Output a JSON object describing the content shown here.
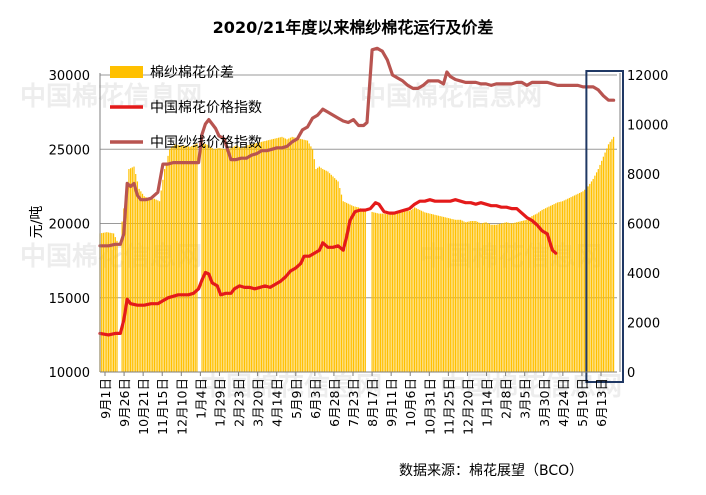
{
  "chart_data": {
    "type": "bar+line",
    "title": "2020/21年度以来棉纱棉花运行及价差",
    "source": "数据来源：棉花展望（BCO）",
    "watermark": "中国棉花信息网",
    "left_axis": {
      "label": "元/吨",
      "ylim": [
        10000,
        30000
      ],
      "ticks": [
        10000,
        15000,
        20000,
        25000,
        30000
      ]
    },
    "right_axis": {
      "ylim": [
        0,
        12000
      ],
      "ticks": [
        0,
        2000,
        4000,
        6000,
        8000,
        10000,
        12000
      ]
    },
    "grid": true,
    "legend_position": "top-left",
    "x_ticks": [
      "9月1日",
      "9月26日",
      "10月21日",
      "11月15日",
      "12月10日",
      "1月4日",
      "1月29日",
      "2月23日",
      "3月20日",
      "4月14日",
      "5月9日",
      "6月3日",
      "6月28日",
      "7月23日",
      "8月17日",
      "9月11日",
      "10月6日",
      "10月31日",
      "11月25日",
      "12月20日",
      "1月14日",
      "2月8日",
      "3月5日",
      "3月30日",
      "4月24日",
      "5月19日",
      "6月13日"
    ],
    "x_axis_days": 304,
    "series": [
      {
        "name": "棉纱棉花价差",
        "kind": "bar",
        "axis": "right",
        "color": "#FFC000",
        "points": [
          [
            0,
            5600
          ],
          [
            4,
            5650
          ],
          [
            8,
            5600
          ],
          [
            10,
            5300
          ],
          [
            12,
            5550
          ],
          [
            17,
            8200
          ],
          [
            20,
            8300
          ],
          [
            23,
            7400
          ],
          [
            26,
            7100
          ],
          [
            29,
            7000
          ],
          [
            32,
            7000
          ],
          [
            35,
            6900
          ],
          [
            38,
            8200
          ],
          [
            41,
            9000
          ],
          [
            44,
            9200
          ],
          [
            47,
            9150
          ],
          [
            50,
            9150
          ],
          [
            53,
            9100
          ],
          [
            56,
            9200
          ],
          [
            59,
            9300
          ],
          [
            61,
            9250
          ],
          [
            64,
            9150
          ],
          [
            67,
            9000
          ],
          [
            70,
            9050
          ],
          [
            74,
            9000
          ],
          [
            77,
            9050
          ],
          [
            80,
            9150
          ],
          [
            83,
            9050
          ],
          [
            86,
            9150
          ],
          [
            89,
            9200
          ],
          [
            92,
            9250
          ],
          [
            95,
            9300
          ],
          [
            98,
            9350
          ],
          [
            101,
            9400
          ],
          [
            104,
            9450
          ],
          [
            107,
            9500
          ],
          [
            110,
            9400
          ],
          [
            113,
            9500
          ],
          [
            116,
            9450
          ],
          [
            119,
            9400
          ],
          [
            122,
            9350
          ],
          [
            125,
            9000
          ],
          [
            127,
            8200
          ],
          [
            129,
            8300
          ],
          [
            131,
            8200
          ],
          [
            134,
            8100
          ],
          [
            137,
            7900
          ],
          [
            140,
            7700
          ],
          [
            143,
            6900
          ],
          [
            146,
            6800
          ],
          [
            149,
            6700
          ],
          [
            152,
            6650
          ],
          [
            155,
            6550
          ],
          [
            158,
            6500
          ],
          [
            161,
            6450
          ],
          [
            164,
            6400
          ],
          [
            167,
            6400
          ],
          [
            170,
            6350
          ],
          [
            173,
            6400
          ],
          [
            176,
            6500
          ],
          [
            179,
            6600
          ],
          [
            182,
            6500
          ],
          [
            185,
            6650
          ],
          [
            188,
            6550
          ],
          [
            191,
            6450
          ],
          [
            194,
            6400
          ],
          [
            197,
            6350
          ],
          [
            200,
            6300
          ],
          [
            203,
            6250
          ],
          [
            206,
            6200
          ],
          [
            209,
            6150
          ],
          [
            212,
            6150
          ],
          [
            215,
            6050
          ],
          [
            218,
            6100
          ],
          [
            221,
            6100
          ],
          [
            224,
            6000
          ],
          [
            227,
            6050
          ],
          [
            230,
            5950
          ],
          [
            233,
            5950
          ],
          [
            236,
            6000
          ],
          [
            239,
            6050
          ],
          [
            242,
            6000
          ],
          [
            245,
            6050
          ],
          [
            248,
            6100
          ],
          [
            251,
            6150
          ],
          [
            254,
            6300
          ],
          [
            257,
            6400
          ],
          [
            260,
            6550
          ],
          [
            263,
            6650
          ],
          [
            266,
            6750
          ],
          [
            269,
            6850
          ],
          [
            272,
            6900
          ],
          [
            275,
            7000
          ],
          [
            278,
            7100
          ],
          [
            281,
            7200
          ],
          [
            284,
            7300
          ],
          [
            287,
            7500
          ],
          [
            290,
            7800
          ],
          [
            293,
            8200
          ],
          [
            296,
            8700
          ],
          [
            299,
            9200
          ],
          [
            302,
            9500
          ]
        ]
      },
      {
        "name": "中国棉花价格指数",
        "kind": "line",
        "axis": "left",
        "color": "#E41A1A",
        "points": [
          [
            0,
            12600
          ],
          [
            5,
            12500
          ],
          [
            9,
            12600
          ],
          [
            12,
            12600
          ],
          [
            14,
            13500
          ],
          [
            16,
            14900
          ],
          [
            18,
            14600
          ],
          [
            22,
            14500
          ],
          [
            26,
            14500
          ],
          [
            30,
            14600
          ],
          [
            34,
            14600
          ],
          [
            37,
            14800
          ],
          [
            40,
            15000
          ],
          [
            43,
            15100
          ],
          [
            46,
            15200
          ],
          [
            49,
            15200
          ],
          [
            52,
            15200
          ],
          [
            55,
            15300
          ],
          [
            58,
            15600
          ],
          [
            60,
            16200
          ],
          [
            62,
            16700
          ],
          [
            64,
            16600
          ],
          [
            66,
            16000
          ],
          [
            69,
            15800
          ],
          [
            71,
            15200
          ],
          [
            74,
            15300
          ],
          [
            77,
            15300
          ],
          [
            79,
            15600
          ],
          [
            82,
            15800
          ],
          [
            85,
            15700
          ],
          [
            88,
            15700
          ],
          [
            91,
            15600
          ],
          [
            94,
            15700
          ],
          [
            97,
            15800
          ],
          [
            100,
            15700
          ],
          [
            103,
            15900
          ],
          [
            106,
            16100
          ],
          [
            109,
            16400
          ],
          [
            112,
            16800
          ],
          [
            115,
            17000
          ],
          [
            118,
            17300
          ],
          [
            120,
            17800
          ],
          [
            123,
            17800
          ],
          [
            126,
            18000
          ],
          [
            129,
            18200
          ],
          [
            131,
            18700
          ],
          [
            134,
            18400
          ],
          [
            137,
            18400
          ],
          [
            140,
            18500
          ],
          [
            143,
            18200
          ],
          [
            145,
            19100
          ],
          [
            147,
            20200
          ],
          [
            150,
            20800
          ],
          [
            153,
            20900
          ],
          [
            156,
            20900
          ],
          [
            159,
            21000
          ],
          [
            162,
            21400
          ],
          [
            164,
            21300
          ],
          [
            167,
            20800
          ],
          [
            170,
            20700
          ],
          [
            173,
            20700
          ],
          [
            176,
            20800
          ],
          [
            179,
            20900
          ],
          [
            182,
            21000
          ],
          [
            185,
            21300
          ],
          [
            188,
            21500
          ],
          [
            191,
            21500
          ],
          [
            194,
            21600
          ],
          [
            197,
            21500
          ],
          [
            200,
            21500
          ],
          [
            203,
            21500
          ],
          [
            206,
            21500
          ],
          [
            209,
            21600
          ],
          [
            212,
            21500
          ],
          [
            215,
            21400
          ],
          [
            218,
            21400
          ],
          [
            221,
            21300
          ],
          [
            224,
            21400
          ],
          [
            227,
            21300
          ],
          [
            230,
            21200
          ],
          [
            233,
            21200
          ],
          [
            236,
            21100
          ],
          [
            239,
            21100
          ],
          [
            242,
            21000
          ],
          [
            245,
            21000
          ],
          [
            248,
            20700
          ],
          [
            251,
            20400
          ],
          [
            254,
            20200
          ],
          [
            257,
            19900
          ],
          [
            260,
            19500
          ],
          [
            263,
            19300
          ],
          [
            266,
            18200
          ],
          [
            268,
            18000
          ]
        ]
      },
      {
        "name": "中国纱线价格指数",
        "kind": "line",
        "axis": "left",
        "color": "#B85450",
        "points": [
          [
            0,
            18500
          ],
          [
            5,
            18500
          ],
          [
            9,
            18600
          ],
          [
            12,
            18600
          ],
          [
            14,
            19300
          ],
          [
            16,
            22700
          ],
          [
            18,
            22500
          ],
          [
            20,
            22700
          ],
          [
            22,
            21900
          ],
          [
            24,
            21600
          ],
          [
            27,
            21600
          ],
          [
            30,
            21700
          ],
          [
            34,
            22100
          ],
          [
            37,
            24000
          ],
          [
            40,
            24000
          ],
          [
            43,
            24100
          ],
          [
            46,
            24100
          ],
          [
            49,
            24100
          ],
          [
            52,
            24100
          ],
          [
            55,
            24100
          ],
          [
            58,
            24100
          ],
          [
            60,
            26000
          ],
          [
            62,
            26700
          ],
          [
            64,
            27000
          ],
          [
            66,
            26700
          ],
          [
            68,
            26400
          ],
          [
            70,
            25900
          ],
          [
            73,
            25700
          ],
          [
            75,
            25000
          ],
          [
            77,
            24300
          ],
          [
            80,
            24300
          ],
          [
            83,
            24400
          ],
          [
            86,
            24400
          ],
          [
            89,
            24600
          ],
          [
            92,
            24700
          ],
          [
            95,
            24900
          ],
          [
            98,
            24900
          ],
          [
            101,
            25000
          ],
          [
            104,
            25100
          ],
          [
            107,
            25100
          ],
          [
            110,
            25200
          ],
          [
            113,
            25500
          ],
          [
            116,
            25700
          ],
          [
            119,
            26300
          ],
          [
            122,
            26500
          ],
          [
            125,
            27100
          ],
          [
            128,
            27300
          ],
          [
            131,
            27700
          ],
          [
            134,
            27500
          ],
          [
            137,
            27300
          ],
          [
            140,
            27100
          ],
          [
            143,
            26900
          ],
          [
            146,
            26800
          ],
          [
            149,
            27000
          ],
          [
            152,
            26600
          ],
          [
            155,
            26600
          ],
          [
            157,
            26800
          ],
          [
            160,
            31700
          ],
          [
            163,
            31800
          ],
          [
            166,
            31600
          ],
          [
            169,
            31000
          ],
          [
            172,
            30000
          ],
          [
            175,
            29800
          ],
          [
            178,
            29600
          ],
          [
            181,
            29300
          ],
          [
            184,
            29100
          ],
          [
            187,
            29100
          ],
          [
            190,
            29300
          ],
          [
            193,
            29600
          ],
          [
            196,
            29600
          ],
          [
            199,
            29600
          ],
          [
            202,
            29400
          ],
          [
            204,
            30200
          ],
          [
            206,
            29900
          ],
          [
            209,
            29700
          ],
          [
            212,
            29600
          ],
          [
            215,
            29500
          ],
          [
            218,
            29500
          ],
          [
            221,
            29500
          ],
          [
            224,
            29400
          ],
          [
            227,
            29400
          ],
          [
            230,
            29300
          ],
          [
            233,
            29400
          ],
          [
            236,
            29400
          ],
          [
            239,
            29400
          ],
          [
            242,
            29400
          ],
          [
            245,
            29500
          ],
          [
            248,
            29500
          ],
          [
            251,
            29300
          ],
          [
            254,
            29500
          ],
          [
            257,
            29500
          ],
          [
            260,
            29500
          ],
          [
            263,
            29500
          ],
          [
            266,
            29400
          ],
          [
            269,
            29300
          ],
          [
            272,
            29300
          ],
          [
            275,
            29300
          ],
          [
            278,
            29300
          ],
          [
            281,
            29300
          ],
          [
            284,
            29200
          ],
          [
            287,
            29200
          ],
          [
            290,
            29200
          ],
          [
            293,
            29000
          ],
          [
            296,
            28600
          ],
          [
            299,
            28300
          ],
          [
            302,
            28300
          ]
        ]
      }
    ],
    "gaps": [
      [
        10,
        13
      ],
      [
        57,
        60
      ],
      [
        156,
        160
      ]
    ],
    "highlight_range": [
      286,
      304
    ],
    "highlight_color": "#1F3864"
  }
}
